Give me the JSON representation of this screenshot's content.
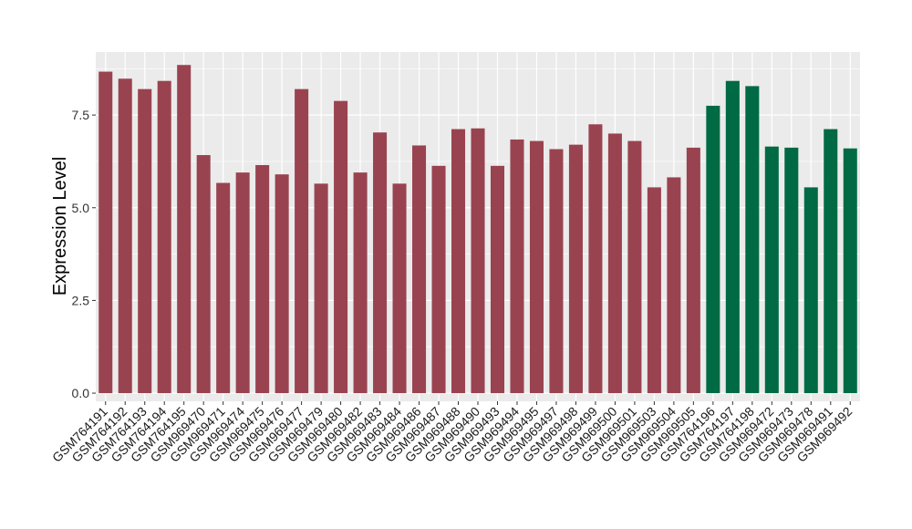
{
  "chart_data": {
    "type": "bar",
    "title": "",
    "xlabel": "",
    "ylabel": "Expression Level",
    "ylim": [
      -0.22,
      9.2
    ],
    "yticks": [
      0.0,
      2.5,
      5.0,
      7.5
    ],
    "ytick_labels": [
      "0.0",
      "2.5",
      "5.0",
      "7.5"
    ],
    "grid": true,
    "legend": "none",
    "colors": {
      "group1": "#9a4350",
      "group2": "#006a45",
      "panel": "#ebebeb",
      "grid": "#ffffff"
    },
    "categories": [
      "GSM764191",
      "GSM764192",
      "GSM764193",
      "GSM764194",
      "GSM764195",
      "GSM969470",
      "GSM969471",
      "GSM969474",
      "GSM969475",
      "GSM969476",
      "GSM969477",
      "GSM969479",
      "GSM969480",
      "GSM969482",
      "GSM969483",
      "GSM969484",
      "GSM969486",
      "GSM969487",
      "GSM969488",
      "GSM969490",
      "GSM969493",
      "GSM969494",
      "GSM969495",
      "GSM969497",
      "GSM969498",
      "GSM969499",
      "GSM969500",
      "GSM969501",
      "GSM969503",
      "GSM969504",
      "GSM969505",
      "GSM764196",
      "GSM764197",
      "GSM764198",
      "GSM969472",
      "GSM969473",
      "GSM969478",
      "GSM969491",
      "GSM969492"
    ],
    "values": [
      8.67,
      8.48,
      8.2,
      8.42,
      8.85,
      6.42,
      5.67,
      5.95,
      6.15,
      5.9,
      8.2,
      5.65,
      7.88,
      5.95,
      7.03,
      5.65,
      6.68,
      6.13,
      7.12,
      7.14,
      6.13,
      6.84,
      6.8,
      6.58,
      6.7,
      7.25,
      7.0,
      6.8,
      5.55,
      5.82,
      6.62,
      7.75,
      8.42,
      8.28,
      6.65,
      6.62,
      5.55,
      7.12,
      6.6
    ],
    "groups": [
      "group1",
      "group1",
      "group1",
      "group1",
      "group1",
      "group1",
      "group1",
      "group1",
      "group1",
      "group1",
      "group1",
      "group1",
      "group1",
      "group1",
      "group1",
      "group1",
      "group1",
      "group1",
      "group1",
      "group1",
      "group1",
      "group1",
      "group1",
      "group1",
      "group1",
      "group1",
      "group1",
      "group1",
      "group1",
      "group1",
      "group1",
      "group2",
      "group2",
      "group2",
      "group2",
      "group2",
      "group2",
      "group2",
      "group2"
    ]
  }
}
